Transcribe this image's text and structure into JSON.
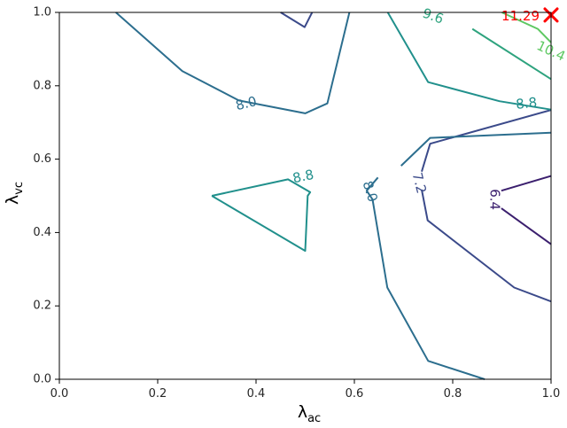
{
  "chart_data": {
    "type": "contour",
    "xlabel": "λ",
    "xlabel_sub": "ac",
    "ylabel": "λ",
    "ylabel_sub": "vc",
    "xlim": [
      0.0,
      1.0
    ],
    "ylim": [
      0.0,
      1.0
    ],
    "xticks": [
      "0.0",
      "0.2",
      "0.4",
      "0.6",
      "0.8",
      "1.0"
    ],
    "yticks": [
      "0.0",
      "0.2",
      "0.4",
      "0.6",
      "0.8",
      "1.0"
    ],
    "grid": false,
    "contours": [
      {
        "level": "6.4",
        "color": "#3b1f6e",
        "segments": [
          [
            [
              0.899,
              0.514
            ],
            [
              1.0,
              0.554
            ]
          ],
          [
            [
              0.899,
              0.466
            ],
            [
              1.0,
              0.368
            ]
          ]
        ]
      },
      {
        "level": "7.2",
        "color": "#3b4a8a",
        "segments": [
          [
            [
              0.45,
              1.0
            ],
            [
              0.499,
              0.96
            ],
            [
              0.514,
              1.0
            ]
          ],
          [
            [
              0.737,
              0.566
            ],
            [
              0.754,
              0.642
            ],
            [
              1.0,
              0.734
            ]
          ],
          [
            [
              0.737,
              0.517
            ],
            [
              0.749,
              0.433
            ],
            [
              0.925,
              0.25
            ],
            [
              1.0,
              0.212
            ]
          ]
        ]
      },
      {
        "level": "8.0",
        "color": "#2c6e8e",
        "segments": [
          [
            [
              0.115,
              1.0
            ],
            [
              0.25,
              0.84
            ],
            [
              0.365,
              0.76
            ],
            [
              0.5,
              0.725
            ],
            [
              0.545,
              0.752
            ],
            [
              0.59,
              1.0
            ]
          ],
          [
            [
              0.695,
              0.582
            ],
            [
              0.754,
              0.658
            ],
            [
              1.0,
              0.672
            ]
          ],
          [
            [
              0.648,
              0.55
            ],
            [
              0.625,
              0.514
            ],
            [
              0.637,
              0.49
            ],
            [
              0.667,
              0.25
            ],
            [
              0.75,
              0.05
            ],
            [
              0.865,
              0.0
            ]
          ]
        ]
      },
      {
        "level": "8.8",
        "color": "#21908c",
        "segments": [
          [
            [
              0.31,
              0.5
            ],
            [
              0.465,
              0.545
            ],
            [
              0.51,
              0.51
            ],
            [
              0.505,
              0.5
            ],
            [
              0.5,
              0.35
            ],
            [
              0.31,
              0.5
            ]
          ],
          [
            [
              0.668,
              1.0
            ],
            [
              0.75,
              0.81
            ],
            [
              0.895,
              0.758
            ],
            [
              1.0,
              0.735
            ]
          ]
        ]
      },
      {
        "level": "9.6",
        "color": "#2ea37e",
        "segments": [
          [
            [
              0.84,
              0.955
            ],
            [
              1.0,
              0.818
            ]
          ]
        ]
      },
      {
        "level": "10.4",
        "color": "#5ec862",
        "segments": [
          [
            [
              0.9,
              1.0
            ],
            [
              0.973,
              0.955
            ],
            [
              1.0,
              0.918
            ]
          ]
        ]
      }
    ],
    "contour_labels": [
      {
        "text": "8.0",
        "x": 0.38,
        "y": 0.752,
        "angle": 14,
        "color": "#2c6e8e"
      },
      {
        "text": "8.8",
        "x": 0.95,
        "y": 0.752,
        "angle": 6,
        "color": "#21908c"
      },
      {
        "text": "8.0",
        "x": 0.632,
        "y": 0.512,
        "angle": -72,
        "color": "#2c6e8e"
      },
      {
        "text": "7.2",
        "x": 0.732,
        "y": 0.535,
        "angle": -76,
        "color": "#3b4a8a"
      },
      {
        "text": "6.4",
        "x": 0.886,
        "y": 0.49,
        "angle": -90,
        "color": "#3b1f6e"
      },
      {
        "text": "8.8",
        "x": 0.496,
        "y": 0.553,
        "angle": 12,
        "color": "#21908c"
      },
      {
        "text": "9.6",
        "x": 0.76,
        "y": 0.99,
        "angle": -20,
        "color": "#2ea37e"
      },
      {
        "text": "10.4",
        "x": 1.0,
        "y": 0.895,
        "angle": -25,
        "color": "#5ec862"
      }
    ],
    "max_point": {
      "x": 1.0,
      "y": 0.993,
      "label": "11.29",
      "color": "#ff0000"
    }
  }
}
